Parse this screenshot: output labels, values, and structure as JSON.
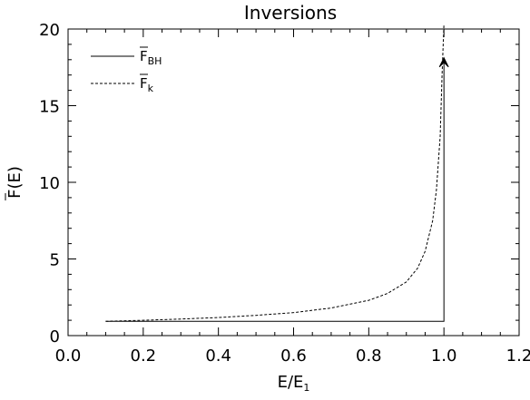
{
  "chart_data": {
    "type": "line",
    "title": "Inversions",
    "xlabel": {
      "main": "E/E",
      "sub": "1"
    },
    "ylabel": {
      "main": "F(E)",
      "bar": true
    },
    "xlim": [
      0.0,
      1.2
    ],
    "ylim": [
      0,
      20
    ],
    "xticks": [
      "0.0",
      "0.2",
      "0.4",
      "0.6",
      "0.8",
      "1.0",
      "1.2"
    ],
    "yticks": [
      "0",
      "5",
      "10",
      "15",
      "20"
    ],
    "grid": false,
    "legend_position": "top-left",
    "series": [
      {
        "name": "F_BH",
        "legend_main": "F",
        "legend_sub": "BH",
        "style": "solid",
        "color": "#000000",
        "points": [
          [
            0.1,
            0.93
          ],
          [
            1.0,
            0.93
          ],
          [
            1.0,
            18.0
          ]
        ]
      },
      {
        "name": "F_k",
        "legend_main": "F",
        "legend_sub": "k",
        "style": "dashed",
        "color": "#000000",
        "points": [
          [
            0.1,
            0.93
          ],
          [
            0.2,
            1.0
          ],
          [
            0.3,
            1.08
          ],
          [
            0.4,
            1.18
          ],
          [
            0.5,
            1.32
          ],
          [
            0.6,
            1.5
          ],
          [
            0.7,
            1.8
          ],
          [
            0.8,
            2.3
          ],
          [
            0.85,
            2.75
          ],
          [
            0.9,
            3.5
          ],
          [
            0.93,
            4.4
          ],
          [
            0.95,
            5.5
          ],
          [
            0.97,
            7.5
          ],
          [
            0.98,
            9.5
          ],
          [
            0.99,
            13.0
          ],
          [
            0.995,
            17.0
          ],
          [
            1.0,
            20.5
          ]
        ]
      }
    ],
    "annotations": [
      {
        "type": "arrow-up",
        "x": 1.0,
        "y": 18.0
      }
    ]
  }
}
